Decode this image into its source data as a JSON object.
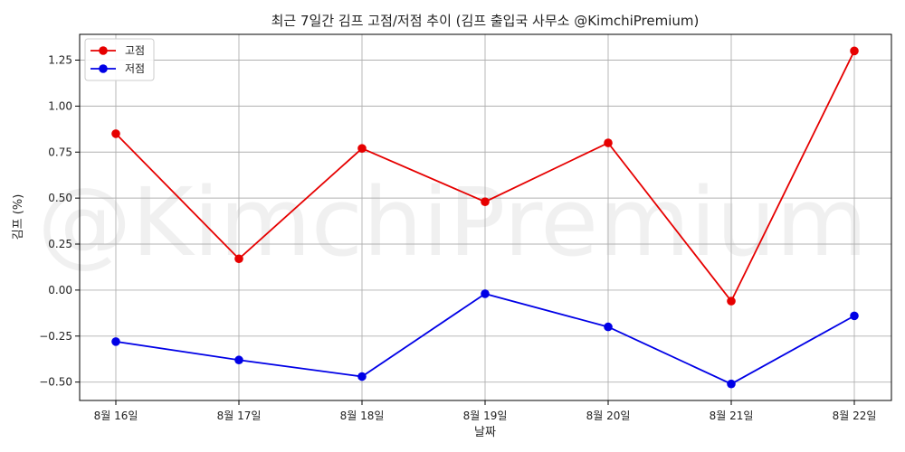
{
  "chart_data": {
    "type": "line",
    "title": "최근 7일간 김프 고점/저점 추이 (김프 출입국 사무소 @KimchiPremium)",
    "xlabel": "날짜",
    "ylabel": "김프 (%)",
    "categories": [
      "8월 16일",
      "8월 17일",
      "8월 18일",
      "8월 19일",
      "8월 20일",
      "8월 21일",
      "8월 22일"
    ],
    "series": [
      {
        "name": "고점",
        "color": "#e60000",
        "values": [
          0.85,
          0.17,
          0.77,
          0.48,
          0.8,
          -0.06,
          1.3
        ]
      },
      {
        "name": "저점",
        "color": "#0000e6",
        "values": [
          -0.28,
          -0.38,
          -0.47,
          -0.02,
          -0.2,
          -0.51,
          -0.14
        ]
      }
    ],
    "yticks": [
      -0.5,
      -0.25,
      0.0,
      0.25,
      0.5,
      0.75,
      1.0,
      1.25
    ],
    "ytick_labels": [
      "−0.50",
      "−0.25",
      "0.00",
      "0.25",
      "0.50",
      "0.75",
      "1.00",
      "1.25"
    ],
    "ylim": [
      -0.6,
      1.39
    ],
    "grid": true,
    "legend": "top-left",
    "watermark": "@KimchiPremium"
  }
}
